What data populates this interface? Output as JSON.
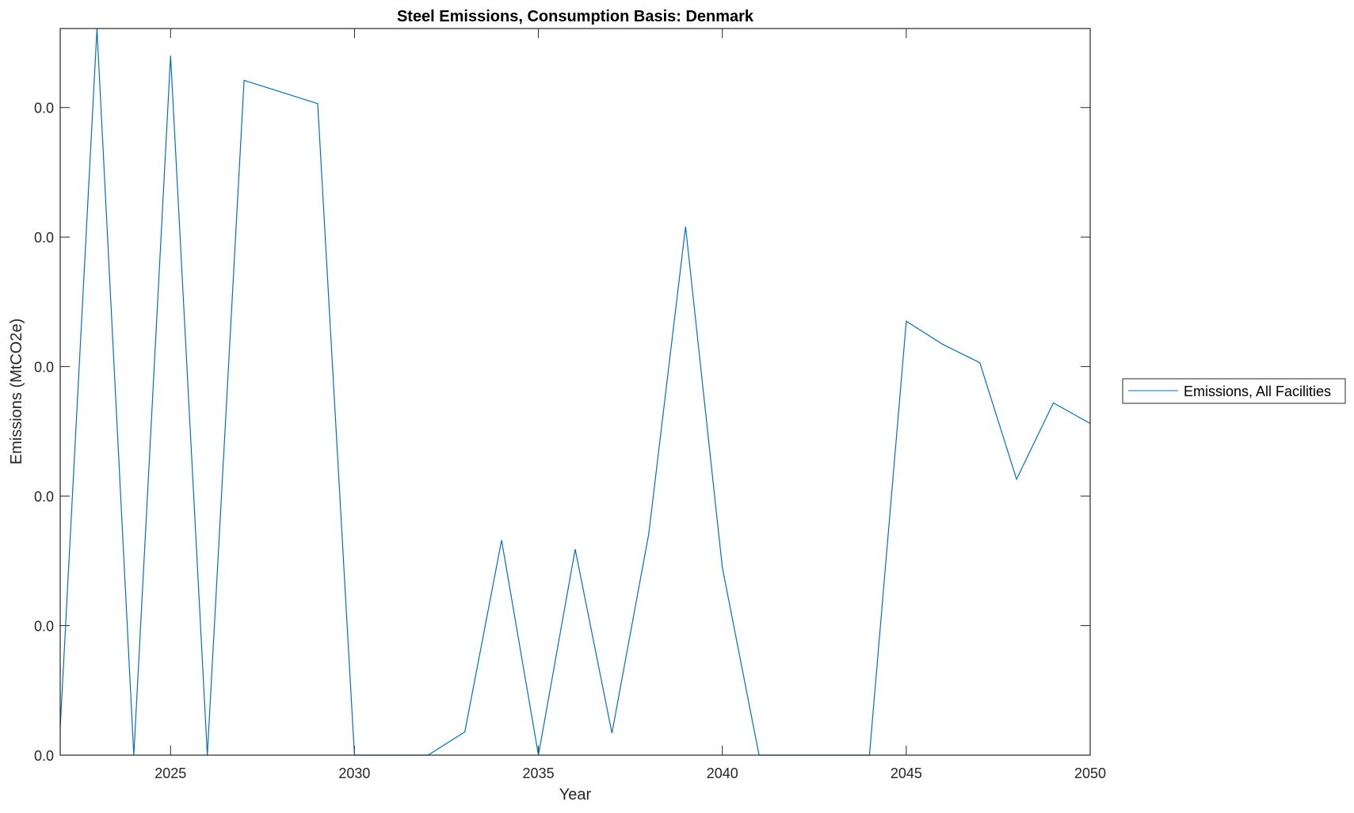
{
  "chart_data": {
    "type": "line",
    "title": "Steel Emissions, Consumption Basis: Denmark",
    "xlabel": "Year",
    "ylabel": "Emissions (MtCO2e)",
    "xlim": [
      2022,
      2050
    ],
    "ylim": [
      0,
      0.0561
    ],
    "xticks": [
      2025,
      2030,
      2035,
      2040,
      2045,
      2050
    ],
    "xtick_labels": [
      "2025",
      "2030",
      "2035",
      "2040",
      "2045",
      "2050"
    ],
    "yticks": [
      0,
      0.01,
      0.02,
      0.03,
      0.04,
      0.05
    ],
    "ytick_labels": [
      "0.0",
      "0.0",
      "0.0",
      "0.0",
      "0.0",
      "0.0"
    ],
    "grid": false,
    "legend_placement": "outside-right",
    "series": [
      {
        "name": "Emissions, All Facilities",
        "color": "#0072BD",
        "x": [
          2022,
          2023,
          2024,
          2025,
          2026,
          2027,
          2028,
          2029,
          2030,
          2031,
          2032,
          2033,
          2034,
          2035,
          2036,
          2037,
          2038,
          2039,
          2040,
          2041,
          2042,
          2043,
          2044,
          2045,
          2046,
          2047,
          2048,
          2049,
          2050
        ],
        "values": [
          0.0021,
          0.0561,
          0,
          0.054,
          0,
          0.0521,
          0.0512,
          0.0503,
          0,
          0,
          0,
          0.0018,
          0.0166,
          0,
          0.0159,
          0.0017,
          0.0171,
          0.0408,
          0.0145,
          0,
          0,
          0,
          0,
          0.0335,
          0.0317,
          0.0303,
          0.0213,
          0.0272,
          0.0256
        ]
      }
    ]
  }
}
